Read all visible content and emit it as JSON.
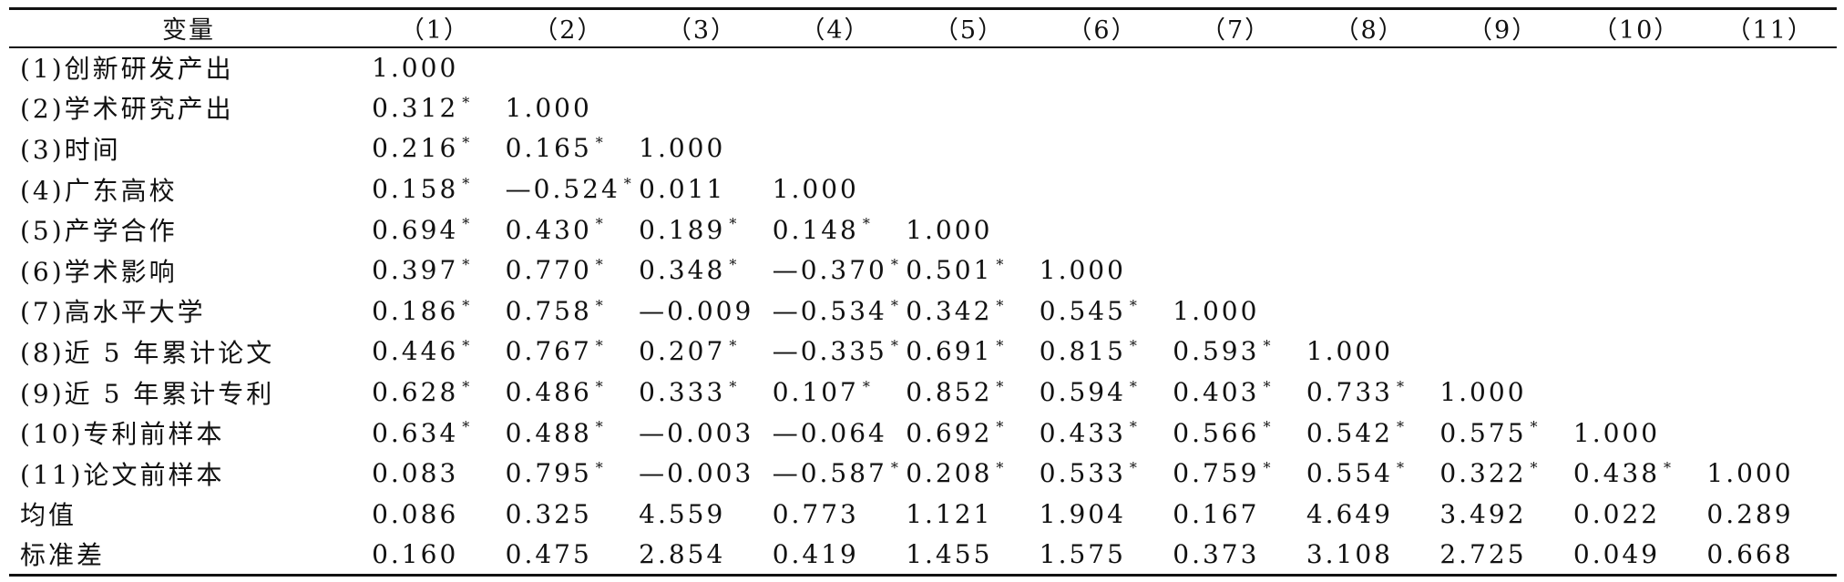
{
  "table": {
    "header_label": "变量",
    "columns": [
      "（1）",
      "（2）",
      "（3）",
      "（4）",
      "（5）",
      "（6）",
      "（7）",
      "（8）",
      "（9）",
      "（10）",
      "（11）"
    ],
    "rows": [
      {
        "label": "(1)创新研发产出",
        "cells": [
          {
            "v": "1.000",
            "s": ""
          },
          {
            "v": "",
            "s": ""
          },
          {
            "v": "",
            "s": ""
          },
          {
            "v": "",
            "s": ""
          },
          {
            "v": "",
            "s": ""
          },
          {
            "v": "",
            "s": ""
          },
          {
            "v": "",
            "s": ""
          },
          {
            "v": "",
            "s": ""
          },
          {
            "v": "",
            "s": ""
          },
          {
            "v": "",
            "s": ""
          },
          {
            "v": "",
            "s": ""
          }
        ]
      },
      {
        "label": "(2)学术研究产出",
        "cells": [
          {
            "v": "0.312",
            "s": "*"
          },
          {
            "v": "1.000",
            "s": ""
          },
          {
            "v": "",
            "s": ""
          },
          {
            "v": "",
            "s": ""
          },
          {
            "v": "",
            "s": ""
          },
          {
            "v": "",
            "s": ""
          },
          {
            "v": "",
            "s": ""
          },
          {
            "v": "",
            "s": ""
          },
          {
            "v": "",
            "s": ""
          },
          {
            "v": "",
            "s": ""
          },
          {
            "v": "",
            "s": ""
          }
        ]
      },
      {
        "label": "(3)时间",
        "cells": [
          {
            "v": "0.216",
            "s": "*"
          },
          {
            "v": "0.165",
            "s": "*"
          },
          {
            "v": "1.000",
            "s": ""
          },
          {
            "v": "",
            "s": ""
          },
          {
            "v": "",
            "s": ""
          },
          {
            "v": "",
            "s": ""
          },
          {
            "v": "",
            "s": ""
          },
          {
            "v": "",
            "s": ""
          },
          {
            "v": "",
            "s": ""
          },
          {
            "v": "",
            "s": ""
          },
          {
            "v": "",
            "s": ""
          }
        ]
      },
      {
        "label": "(4)广东高校",
        "cells": [
          {
            "v": "0.158",
            "s": "*"
          },
          {
            "v": "—0.524",
            "s": "*"
          },
          {
            "v": "0.011",
            "s": ""
          },
          {
            "v": "1.000",
            "s": ""
          },
          {
            "v": "",
            "s": ""
          },
          {
            "v": "",
            "s": ""
          },
          {
            "v": "",
            "s": ""
          },
          {
            "v": "",
            "s": ""
          },
          {
            "v": "",
            "s": ""
          },
          {
            "v": "",
            "s": ""
          },
          {
            "v": "",
            "s": ""
          }
        ]
      },
      {
        "label": "(5)产学合作",
        "cells": [
          {
            "v": "0.694",
            "s": "*"
          },
          {
            "v": "0.430",
            "s": "*"
          },
          {
            "v": "0.189",
            "s": "*"
          },
          {
            "v": "0.148",
            "s": "*"
          },
          {
            "v": "1.000",
            "s": ""
          },
          {
            "v": "",
            "s": ""
          },
          {
            "v": "",
            "s": ""
          },
          {
            "v": "",
            "s": ""
          },
          {
            "v": "",
            "s": ""
          },
          {
            "v": "",
            "s": ""
          },
          {
            "v": "",
            "s": ""
          }
        ]
      },
      {
        "label": "(6)学术影响",
        "cells": [
          {
            "v": "0.397",
            "s": "*"
          },
          {
            "v": "0.770",
            "s": "*"
          },
          {
            "v": "0.348",
            "s": "*"
          },
          {
            "v": "—0.370",
            "s": "*"
          },
          {
            "v": "0.501",
            "s": "*"
          },
          {
            "v": "1.000",
            "s": ""
          },
          {
            "v": "",
            "s": ""
          },
          {
            "v": "",
            "s": ""
          },
          {
            "v": "",
            "s": ""
          },
          {
            "v": "",
            "s": ""
          },
          {
            "v": "",
            "s": ""
          }
        ]
      },
      {
        "label": "(7)高水平大学",
        "cells": [
          {
            "v": "0.186",
            "s": "*"
          },
          {
            "v": "0.758",
            "s": "*"
          },
          {
            "v": "—0.009",
            "s": ""
          },
          {
            "v": "—0.534",
            "s": "*"
          },
          {
            "v": "0.342",
            "s": "*"
          },
          {
            "v": "0.545",
            "s": "*"
          },
          {
            "v": "1.000",
            "s": ""
          },
          {
            "v": "",
            "s": ""
          },
          {
            "v": "",
            "s": ""
          },
          {
            "v": "",
            "s": ""
          },
          {
            "v": "",
            "s": ""
          }
        ]
      },
      {
        "label": "(8)近 5 年累计论文",
        "cells": [
          {
            "v": "0.446",
            "s": "*"
          },
          {
            "v": "0.767",
            "s": "*"
          },
          {
            "v": "0.207",
            "s": "*"
          },
          {
            "v": "—0.335",
            "s": "*"
          },
          {
            "v": "0.691",
            "s": "*"
          },
          {
            "v": "0.815",
            "s": "*"
          },
          {
            "v": "0.593",
            "s": "*"
          },
          {
            "v": "1.000",
            "s": ""
          },
          {
            "v": "",
            "s": ""
          },
          {
            "v": "",
            "s": ""
          },
          {
            "v": "",
            "s": ""
          }
        ]
      },
      {
        "label": "(9)近 5 年累计专利",
        "cells": [
          {
            "v": "0.628",
            "s": "*"
          },
          {
            "v": "0.486",
            "s": "*"
          },
          {
            "v": "0.333",
            "s": "*"
          },
          {
            "v": "0.107",
            "s": "*"
          },
          {
            "v": "0.852",
            "s": "*"
          },
          {
            "v": "0.594",
            "s": "*"
          },
          {
            "v": "0.403",
            "s": "*"
          },
          {
            "v": "0.733",
            "s": "*"
          },
          {
            "v": "1.000",
            "s": ""
          },
          {
            "v": "",
            "s": ""
          },
          {
            "v": "",
            "s": ""
          }
        ]
      },
      {
        "label": "(10)专利前样本",
        "cells": [
          {
            "v": "0.634",
            "s": "*"
          },
          {
            "v": "0.488",
            "s": "*"
          },
          {
            "v": "—0.003",
            "s": ""
          },
          {
            "v": "—0.064",
            "s": ""
          },
          {
            "v": "0.692",
            "s": "*"
          },
          {
            "v": "0.433",
            "s": "*"
          },
          {
            "v": "0.566",
            "s": "*"
          },
          {
            "v": "0.542",
            "s": "*"
          },
          {
            "v": "0.575",
            "s": "*"
          },
          {
            "v": "1.000",
            "s": ""
          },
          {
            "v": "",
            "s": ""
          }
        ]
      },
      {
        "label": "(11)论文前样本",
        "cells": [
          {
            "v": "0.083",
            "s": ""
          },
          {
            "v": "0.795",
            "s": "*"
          },
          {
            "v": "—0.003",
            "s": ""
          },
          {
            "v": "—0.587",
            "s": "*"
          },
          {
            "v": "0.208",
            "s": "*"
          },
          {
            "v": "0.533",
            "s": "*"
          },
          {
            "v": "0.759",
            "s": "*"
          },
          {
            "v": "0.554",
            "s": "*"
          },
          {
            "v": "0.322",
            "s": "*"
          },
          {
            "v": "0.438",
            "s": "*"
          },
          {
            "v": "1.000",
            "s": ""
          }
        ]
      },
      {
        "label": "均值",
        "cells": [
          {
            "v": "0.086",
            "s": ""
          },
          {
            "v": "0.325",
            "s": ""
          },
          {
            "v": "4.559",
            "s": ""
          },
          {
            "v": "0.773",
            "s": ""
          },
          {
            "v": "1.121",
            "s": ""
          },
          {
            "v": "1.904",
            "s": ""
          },
          {
            "v": "0.167",
            "s": ""
          },
          {
            "v": "4.649",
            "s": ""
          },
          {
            "v": "3.492",
            "s": ""
          },
          {
            "v": "0.022",
            "s": ""
          },
          {
            "v": "0.289",
            "s": ""
          }
        ]
      },
      {
        "label": "标准差",
        "cells": [
          {
            "v": "0.160",
            "s": ""
          },
          {
            "v": "0.475",
            "s": ""
          },
          {
            "v": "2.854",
            "s": ""
          },
          {
            "v": "0.419",
            "s": ""
          },
          {
            "v": "1.455",
            "s": ""
          },
          {
            "v": "1.575",
            "s": ""
          },
          {
            "v": "0.373",
            "s": ""
          },
          {
            "v": "3.108",
            "s": ""
          },
          {
            "v": "2.725",
            "s": ""
          },
          {
            "v": "0.049",
            "s": ""
          },
          {
            "v": "0.668",
            "s": ""
          }
        ]
      }
    ]
  }
}
